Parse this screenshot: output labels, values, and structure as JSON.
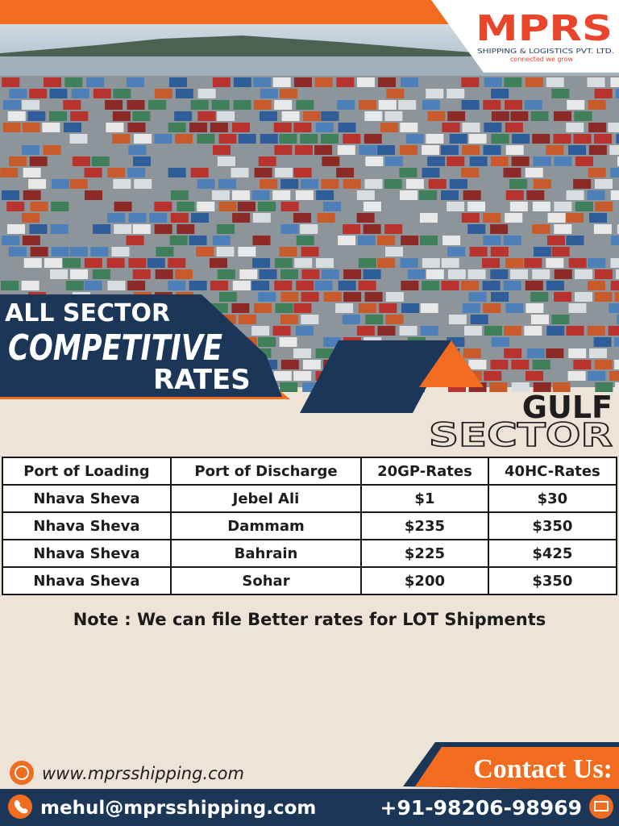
{
  "header": {
    "logo": "MPRS",
    "company": "SHIPPING & LOGISTICS PVT. LTD.",
    "tagline": "connected we grow"
  },
  "banner": {
    "line1": "ALL SECTOR",
    "line2": "COMPETITIVE",
    "line3": "RATES"
  },
  "sector": {
    "line1": "GULF",
    "line2": "SECTOR"
  },
  "table": {
    "columns": [
      "Port of Loading",
      "Port of Discharge",
      "20GP-Rates",
      "40HC-Rates"
    ],
    "rows": [
      [
        "Nhava Sheva",
        "Jebel Ali",
        "$1",
        "$30"
      ],
      [
        "Nhava Sheva",
        "Dammam",
        "$235",
        "$350"
      ],
      [
        "Nhava Sheva",
        "Bahrain",
        "$225",
        "$425"
      ],
      [
        "Nhava Sheva",
        "Sohar",
        "$200",
        "$350"
      ]
    ]
  },
  "note": "Note : We can file Better rates for LOT Shipments",
  "contact": {
    "heading": "Contact Us:",
    "website": "www.mprsshipping.com",
    "email": "mehul@mprsshipping.com",
    "phone": "+91-98206-98969"
  }
}
